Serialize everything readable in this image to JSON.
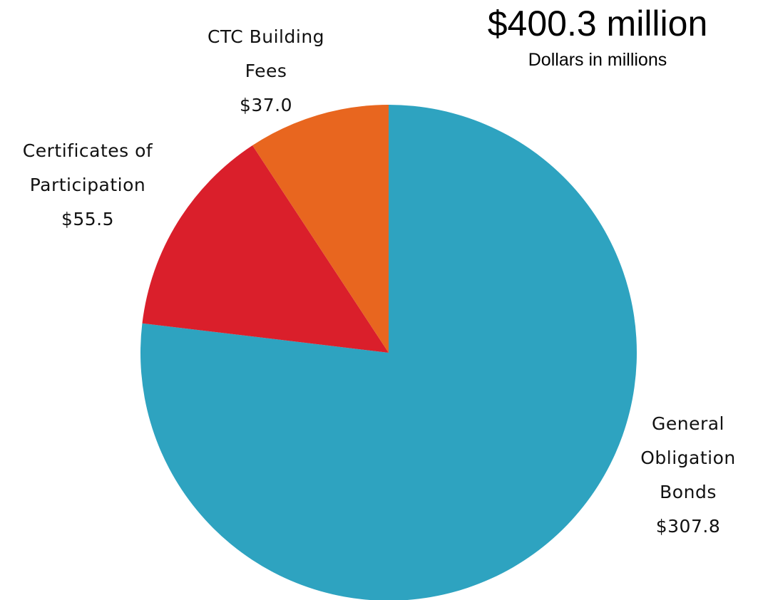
{
  "chart_data": {
    "type": "pie",
    "title": "$400.3 million",
    "subtitle": "Dollars in millions",
    "categories": [
      "General Obligation Bonds",
      "Certificates of Participation",
      "CTC Building Fees"
    ],
    "values": [
      307.8,
      55.5,
      37.0
    ],
    "value_labels": [
      "$307.8",
      "$55.5",
      "$37.0"
    ],
    "colors": [
      "#2ea3c0",
      "#da1f2b",
      "#e8661f"
    ]
  }
}
